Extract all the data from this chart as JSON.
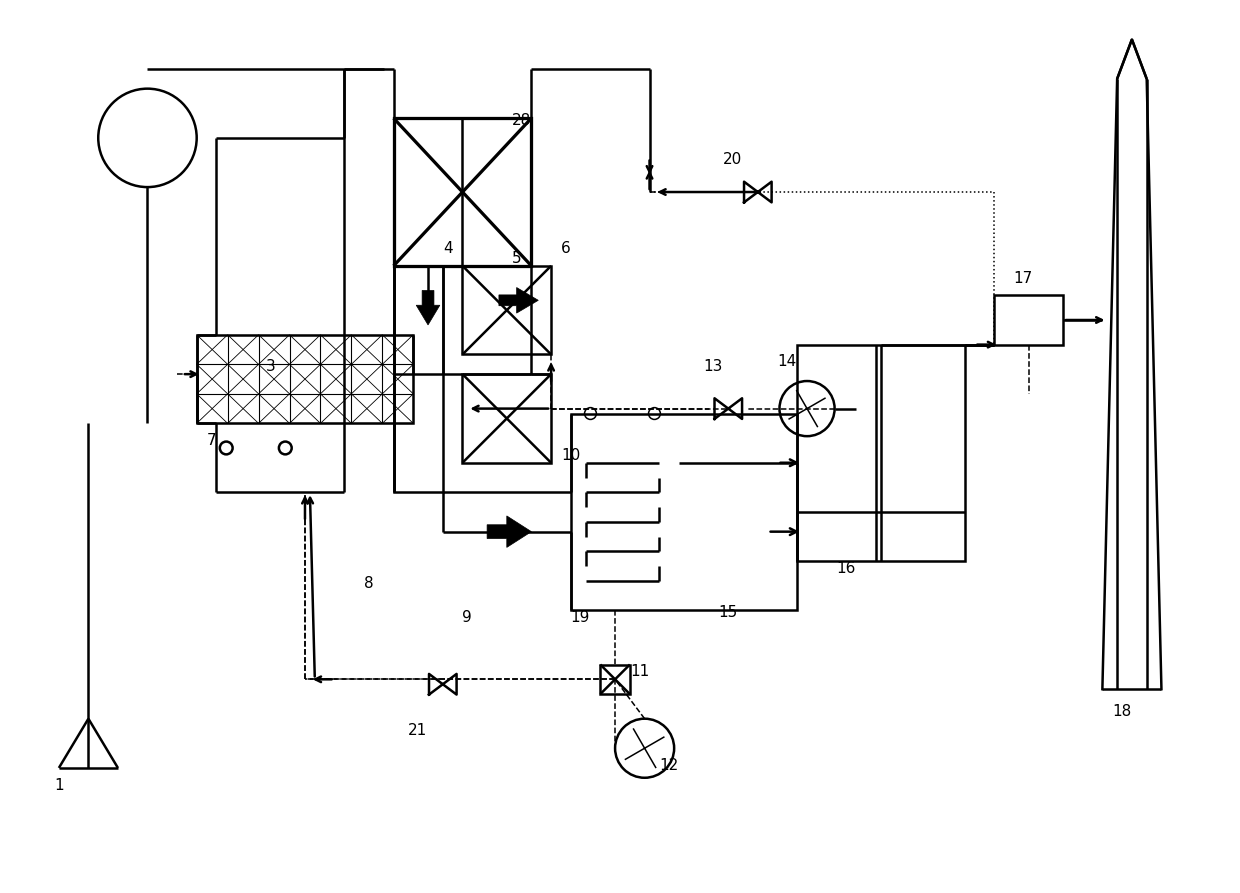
{
  "figsize": [
    12.4,
    8.93
  ],
  "dpi": 100,
  "bg": "#ffffff",
  "lc": "#000000",
  "lw": 1.8,
  "lw2": 1.1
}
